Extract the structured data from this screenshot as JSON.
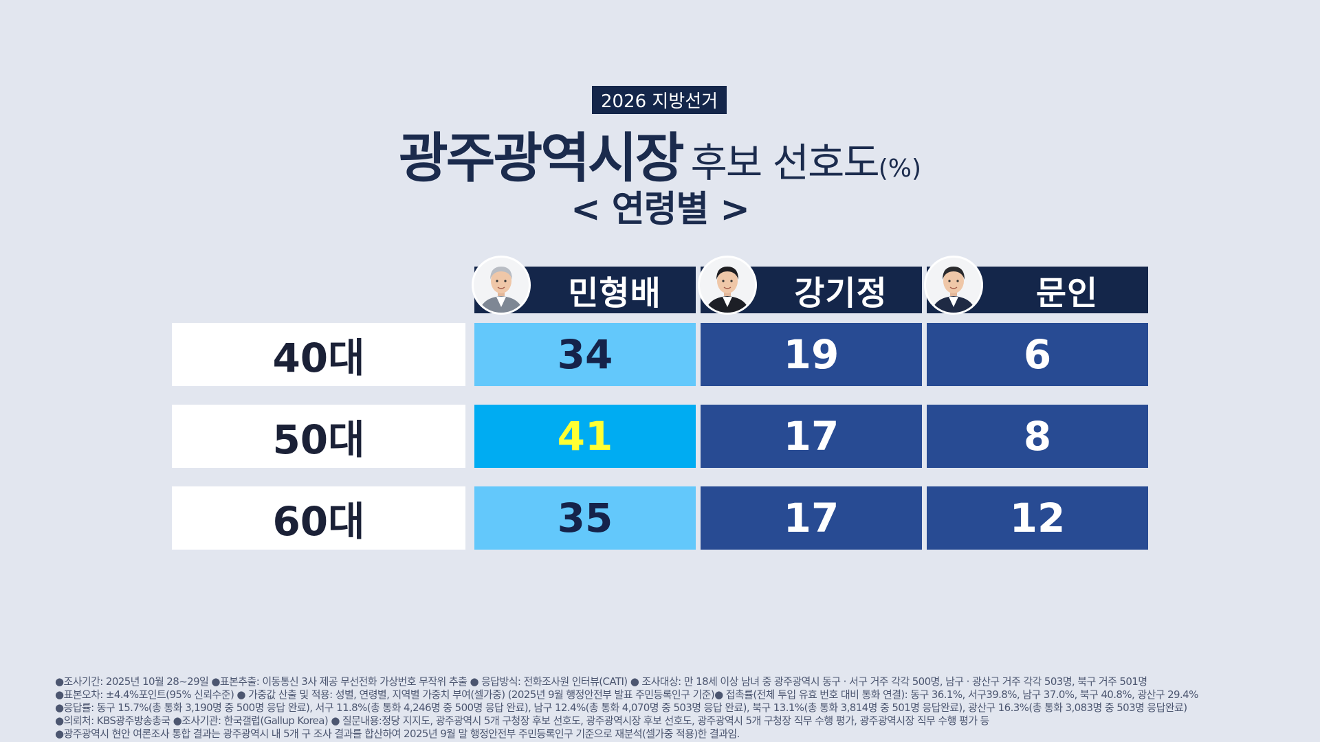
{
  "badge": "2026 지방선거",
  "title": {
    "main": "광주광역시장",
    "sub": "후보 선호도",
    "unit": "(%)"
  },
  "subtitle": "< 연령별 >",
  "chart_data": {
    "type": "table",
    "columns": [
      "민형배",
      "강기정",
      "문인"
    ],
    "rows": [
      {
        "label": "40대",
        "values": [
          34,
          19,
          6
        ]
      },
      {
        "label": "50대",
        "values": [
          41,
          17,
          8
        ]
      },
      {
        "label": "60대",
        "values": [
          35,
          17,
          12
        ]
      }
    ],
    "highlight": {
      "row": "50대",
      "column": "민형배",
      "value": 41
    },
    "colors": {
      "header": "#14264a",
      "minhyungbae": "#63c8fb",
      "minhyungbae_highlight": "#00acf2",
      "highlight_text": "#ffff33",
      "others": "#284b93",
      "label_bg": "#ffffff"
    }
  },
  "candidates": [
    {
      "name": "민형배",
      "icon": "person-portrait-icon"
    },
    {
      "name": "강기정",
      "icon": "person-portrait-icon"
    },
    {
      "name": "문인",
      "icon": "person-portrait-icon"
    }
  ],
  "notes": [
    "●조사기간: 2025년 10월 28~29일 ●표본추출: 이동통신 3사 제공 무선전화 가상번호 무작위 추출 ● 응답방식: 전화조사원 인터뷰(CATI) ● 조사대상: 만 18세 이상 남녀 중 광주광역시 동구 · 서구 거주 각각 500명, 남구 · 광산구 거주 각각 503명, 북구 거주 501명",
    "●표본오차: ±4.4%포인트(95% 신뢰수준) ● 가중값 산출 및 적용: 성별, 연령별, 지역별 가중치 부여(셀가중) (2025년 9월 행정안전부 발표 주민등록인구 기준)● 접촉률(전체 투입 유효 번호 대비 통화 연결): 동구 36.1%, 서구39.8%, 남구 37.0%, 북구 40.8%, 광산구 29.4%",
    "●응답률: 동구 15.7%(총 통화 3,190명 중 500명 응답 완료), 서구 11.8%(총 통화 4,246명 중 500명 응답 완료), 남구 12.4%(총 통화 4,070명 중 503명 응답 완료), 북구 13.1%(총 통화 3,814명 중 501명 응답완료), 광산구 16.3%(총 통화 3,083명 중 503명 응답완료)",
    "●의뢰처: KBS광주방송총국 ●조사기관: 한국갤럽(Gallup Korea) ● 질문내용:정당 지지도, 광주광역시 5개 구청장 후보 선호도, 광주광역시장 후보 선호도, 광주광역시 5개 구청장 직무 수행 평가, 광주광역시장 직무 수행 평가 등",
    "●광주광역시 현안 여론조사 통합 결과는 광주광역시 내 5개 구 조사 결과를 합산하여 2025년 9월 말 행정안전부 주민등록인구 기준으로 재분석(셀가중 적용)한 결과임."
  ]
}
